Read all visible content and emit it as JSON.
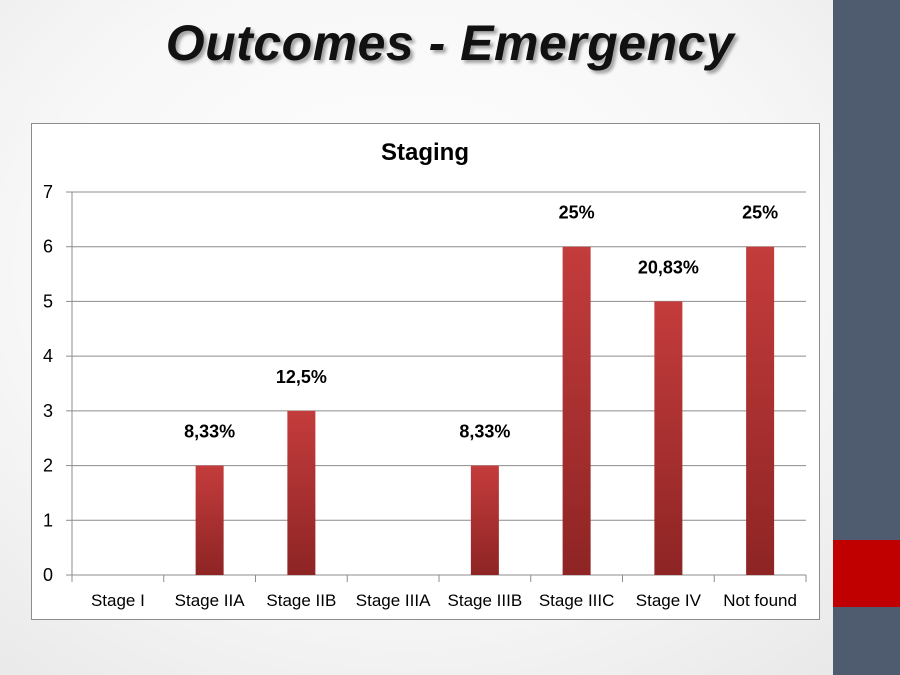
{
  "slide": {
    "title": "Outcomes - Emergency",
    "colors": {
      "sidebar": "#4f5b6e",
      "accent": "#c00000",
      "bar": "#b83232"
    }
  },
  "chart_data": {
    "type": "bar",
    "title": "Staging",
    "categories": [
      "Stage I",
      "Stage IIA",
      "Stage IIB",
      "Stage IIIA",
      "Stage IIIB",
      "Stage IIIC",
      "Stage IV",
      "Not found"
    ],
    "values": [
      0,
      2,
      3,
      0,
      2,
      6,
      5,
      6
    ],
    "data_labels": [
      "",
      "8,33%",
      "12,5%",
      "",
      "8,33%",
      "25%",
      "20,83%",
      "25%"
    ],
    "xlabel": "",
    "ylabel": "",
    "ylim": [
      0,
      7
    ],
    "yticks": [
      "0",
      "1",
      "2",
      "3",
      "4",
      "5",
      "6",
      "7"
    ],
    "grid": true,
    "legend": "none"
  }
}
